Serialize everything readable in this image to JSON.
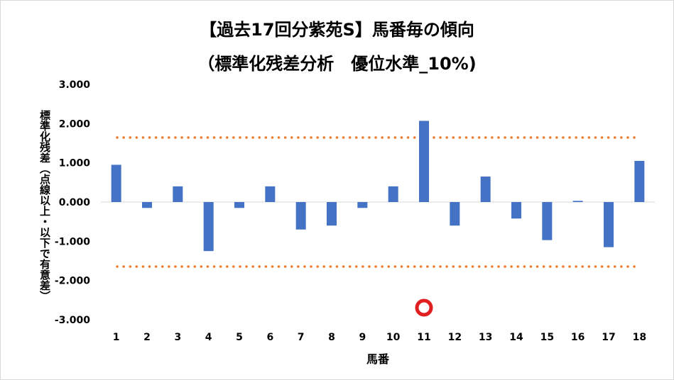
{
  "chart_data": {
    "type": "bar",
    "title": "【過去17回分紫苑S】馬番毎の傾向",
    "subtitle": "（標準化残差分析　優位水準_10%)",
    "xlabel": "馬番",
    "ylabel_line1": "標準化残差",
    "ylabel_line2": "（点線以上・以下で有意差）",
    "categories": [
      "1",
      "2",
      "3",
      "4",
      "5",
      "6",
      "7",
      "8",
      "9",
      "10",
      "11",
      "12",
      "13",
      "14",
      "15",
      "16",
      "17",
      "18"
    ],
    "values": [
      0.95,
      -0.15,
      0.4,
      -1.25,
      -0.15,
      0.4,
      -0.7,
      -0.6,
      -0.15,
      0.4,
      2.07,
      -0.6,
      0.65,
      -0.42,
      -0.97,
      0.03,
      -1.15,
      1.05
    ],
    "ylim": [
      -3,
      3
    ],
    "ytick_labels": [
      "3.000",
      "2.000",
      "1.000",
      "0.000",
      "-1.000",
      "-2.000",
      "-3.000"
    ],
    "significance_lines": [
      1.645,
      -1.645
    ],
    "highlight_category": "11",
    "bar_color": "#4472c4",
    "line_color": "#ed7d31",
    "marker_color": "#e02020",
    "grid": false,
    "legend": "none"
  }
}
